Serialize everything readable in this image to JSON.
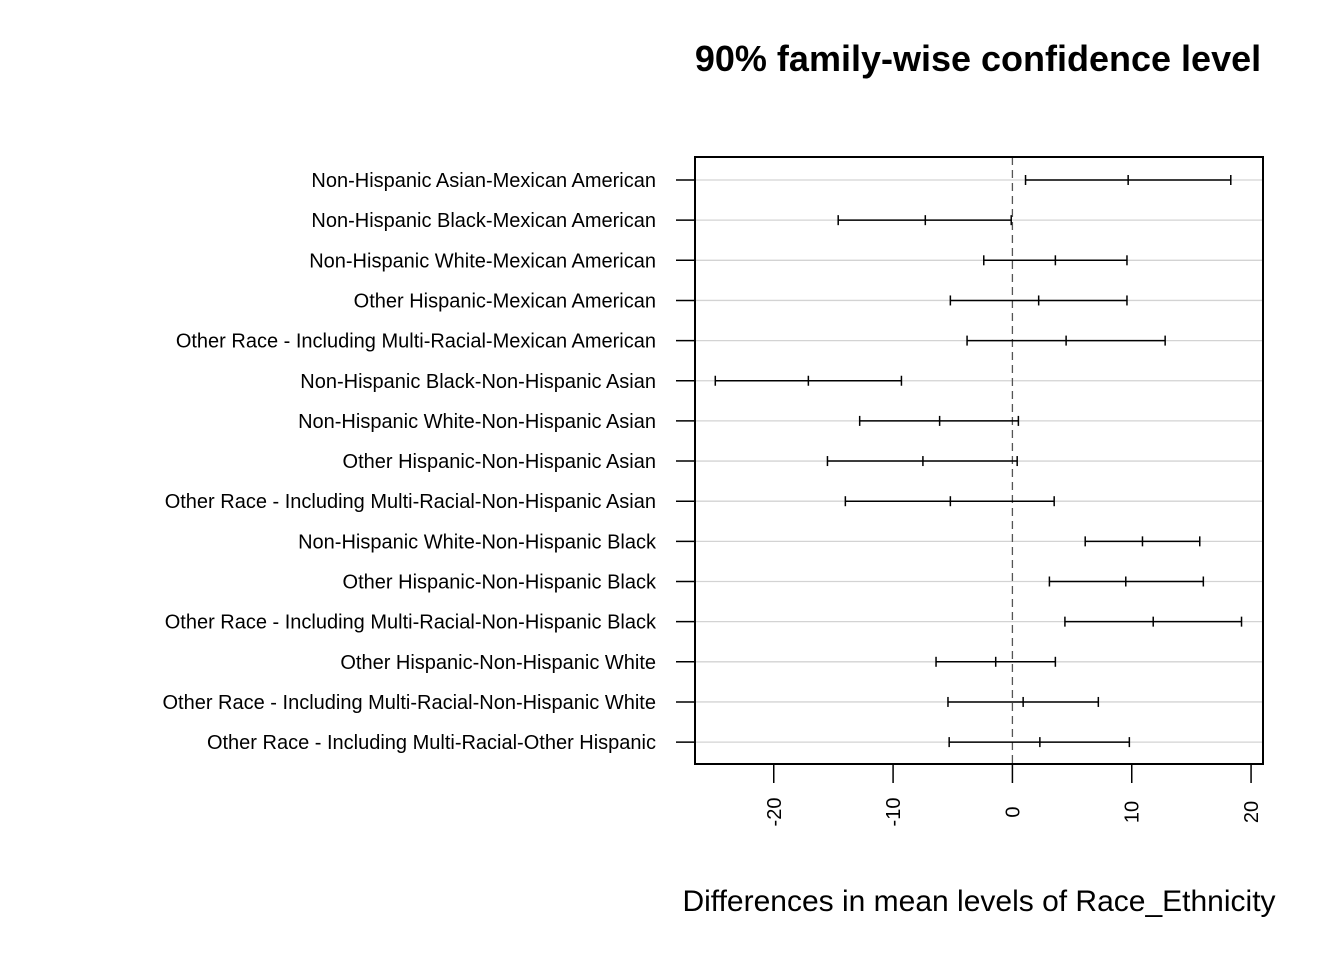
{
  "chart_data": {
    "type": "errorbar",
    "title": "90% family-wise confidence level",
    "xlabel": "Differences in mean levels of Race_Ethnicity",
    "ylabel": "",
    "xlim": [
      -26.6,
      21.0
    ],
    "xticks": [
      -20,
      -10,
      0,
      10,
      20
    ],
    "xtick_labels": [
      "-20",
      "-10",
      "0",
      "10",
      "20"
    ],
    "reference_line": 0,
    "grid": "horizontal",
    "categories": [
      "Non-Hispanic Asian-Mexican American",
      "Non-Hispanic Black-Mexican American",
      "Non-Hispanic White-Mexican American",
      "Other Hispanic-Mexican American",
      "Other Race - Including Multi-Racial-Mexican American",
      "Non-Hispanic Black-Non-Hispanic Asian",
      "Non-Hispanic White-Non-Hispanic Asian",
      "Other Hispanic-Non-Hispanic Asian",
      "Other Race - Including Multi-Racial-Non-Hispanic Asian",
      "Non-Hispanic White-Non-Hispanic Black",
      "Other Hispanic-Non-Hispanic Black",
      "Other Race - Including Multi-Racial-Non-Hispanic Black",
      "Other Hispanic-Non-Hispanic White",
      "Other Race - Including Multi-Racial-Non-Hispanic White",
      "Other Race - Including Multi-Racial-Other Hispanic"
    ],
    "lwr": [
      1.1,
      -14.6,
      -2.4,
      -5.2,
      -3.8,
      -24.9,
      -12.8,
      -15.5,
      -14.0,
      6.1,
      3.1,
      4.4,
      -6.4,
      -5.4,
      -5.3
    ],
    "diff": [
      9.7,
      -7.3,
      3.6,
      2.2,
      4.5,
      -17.1,
      -6.1,
      -7.5,
      -5.2,
      10.9,
      9.5,
      11.8,
      -1.4,
      0.9,
      2.3
    ],
    "upr": [
      18.3,
      -0.1,
      9.6,
      9.6,
      12.8,
      -9.3,
      0.5,
      0.4,
      3.5,
      15.7,
      16.0,
      19.2,
      3.6,
      7.2,
      9.8
    ]
  }
}
